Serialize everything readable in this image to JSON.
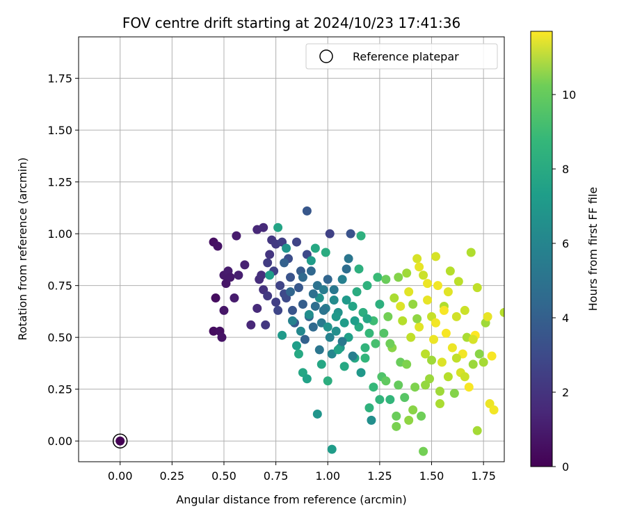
{
  "chart_data": {
    "type": "scatter",
    "title": "FOV centre drift starting at 2024/10/23 17:41:36",
    "xlabel": "Angular distance from reference (arcmin)",
    "ylabel": "Rotation from reference (arcmin)",
    "xlim": [
      -0.2,
      1.85
    ],
    "ylim": [
      -0.1,
      1.95
    ],
    "xticks": [
      0.0,
      0.25,
      0.5,
      0.75,
      1.0,
      1.25,
      1.5,
      1.75
    ],
    "xtick_labels": [
      "0.00",
      "0.25",
      "0.50",
      "0.75",
      "1.00",
      "1.25",
      "1.50",
      "1.75"
    ],
    "yticks": [
      0.0,
      0.25,
      0.5,
      0.75,
      1.0,
      1.25,
      1.5,
      1.75
    ],
    "ytick_labels": [
      "0.00",
      "0.25",
      "0.50",
      "0.75",
      "1.00",
      "1.25",
      "1.50",
      "1.75"
    ],
    "grid": true,
    "legend": {
      "position": "top-right",
      "entries": [
        "Reference platepar"
      ]
    },
    "reference_point": {
      "x": 0.0,
      "y": 0.0,
      "label": "Reference platepar"
    },
    "colorbar": {
      "label": "Hours from first FF file",
      "range": [
        0,
        11.7
      ],
      "ticks": [
        0,
        2,
        4,
        6,
        8,
        10
      ],
      "colormap": "viridis"
    },
    "points": [
      {
        "x": 0.45,
        "y": 0.96,
        "c": 0.5
      },
      {
        "x": 0.47,
        "y": 0.94,
        "c": 0.6
      },
      {
        "x": 0.46,
        "y": 0.69,
        "c": 0.4
      },
      {
        "x": 0.45,
        "y": 0.53,
        "c": 0.4
      },
      {
        "x": 0.48,
        "y": 0.53,
        "c": 0.5
      },
      {
        "x": 0.49,
        "y": 0.5,
        "c": 0.6
      },
      {
        "x": 0.5,
        "y": 0.63,
        "c": 0.7
      },
      {
        "x": 0.5,
        "y": 0.8,
        "c": 0.8
      },
      {
        "x": 0.51,
        "y": 0.76,
        "c": 0.7
      },
      {
        "x": 0.52,
        "y": 0.82,
        "c": 0.9
      },
      {
        "x": 0.53,
        "y": 0.79,
        "c": 0.8
      },
      {
        "x": 0.55,
        "y": 0.69,
        "c": 0.9
      },
      {
        "x": 0.56,
        "y": 0.99,
        "c": 0.9
      },
      {
        "x": 0.57,
        "y": 0.8,
        "c": 1.0
      },
      {
        "x": 0.6,
        "y": 0.85,
        "c": 1.1
      },
      {
        "x": 0.63,
        "y": 0.56,
        "c": 1.3
      },
      {
        "x": 0.66,
        "y": 0.64,
        "c": 1.4
      },
      {
        "x": 0.66,
        "y": 1.02,
        "c": 1.3
      },
      {
        "x": 0.67,
        "y": 0.78,
        "c": 1.5
      },
      {
        "x": 0.68,
        "y": 0.8,
        "c": 1.6
      },
      {
        "x": 0.69,
        "y": 1.03,
        "c": 1.4
      },
      {
        "x": 0.69,
        "y": 0.73,
        "c": 1.7
      },
      {
        "x": 0.7,
        "y": 0.56,
        "c": 1.9
      },
      {
        "x": 0.71,
        "y": 0.7,
        "c": 2.0
      },
      {
        "x": 0.71,
        "y": 0.86,
        "c": 2.1
      },
      {
        "x": 0.72,
        "y": 0.9,
        "c": 1.8
      },
      {
        "x": 0.73,
        "y": 0.97,
        "c": 1.9
      },
      {
        "x": 0.74,
        "y": 0.82,
        "c": 2.3
      },
      {
        "x": 0.75,
        "y": 0.67,
        "c": 2.2
      },
      {
        "x": 0.75,
        "y": 0.95,
        "c": 2.0
      },
      {
        "x": 0.76,
        "y": 0.63,
        "c": 2.5
      },
      {
        "x": 0.77,
        "y": 0.75,
        "c": 2.4
      },
      {
        "x": 0.78,
        "y": 0.96,
        "c": 2.2
      },
      {
        "x": 0.79,
        "y": 0.71,
        "c": 2.6
      },
      {
        "x": 0.8,
        "y": 0.69,
        "c": 2.7
      },
      {
        "x": 0.81,
        "y": 0.88,
        "c": 2.8
      },
      {
        "x": 0.82,
        "y": 0.79,
        "c": 3.0
      },
      {
        "x": 0.83,
        "y": 0.63,
        "c": 3.1
      },
      {
        "x": 0.84,
        "y": 0.57,
        "c": 3.3
      },
      {
        "x": 0.85,
        "y": 0.96,
        "c": 2.4
      },
      {
        "x": 0.86,
        "y": 0.74,
        "c": 3.2
      },
      {
        "x": 0.87,
        "y": 0.82,
        "c": 3.4
      },
      {
        "x": 0.88,
        "y": 0.66,
        "c": 3.5
      },
      {
        "x": 0.89,
        "y": 0.49,
        "c": 3.6
      },
      {
        "x": 0.9,
        "y": 0.9,
        "c": 2.6
      },
      {
        "x": 0.9,
        "y": 1.11,
        "c": 3.2
      },
      {
        "x": 0.91,
        "y": 0.6,
        "c": 3.8
      },
      {
        "x": 0.92,
        "y": 0.82,
        "c": 3.9
      },
      {
        "x": 0.93,
        "y": 0.55,
        "c": 4.0
      },
      {
        "x": 0.94,
        "y": 0.65,
        "c": 4.2
      },
      {
        "x": 0.95,
        "y": 0.75,
        "c": 4.4
      },
      {
        "x": 0.96,
        "y": 0.44,
        "c": 4.6
      },
      {
        "x": 0.97,
        "y": 0.57,
        "c": 4.8
      },
      {
        "x": 0.98,
        "y": 0.73,
        "c": 4.9
      },
      {
        "x": 0.99,
        "y": 0.64,
        "c": 5.0
      },
      {
        "x": 1.0,
        "y": 0.78,
        "c": 3.8
      },
      {
        "x": 1.01,
        "y": 1.0,
        "c": 2.3
      },
      {
        "x": 1.01,
        "y": 0.5,
        "c": 5.2
      },
      {
        "x": 1.02,
        "y": 0.42,
        "c": 5.4
      },
      {
        "x": 1.03,
        "y": 0.68,
        "c": 5.6
      },
      {
        "x": 1.04,
        "y": 0.53,
        "c": 5.8
      },
      {
        "x": 1.05,
        "y": 0.62,
        "c": 6.0
      },
      {
        "x": 1.06,
        "y": 0.45,
        "c": 6.2
      },
      {
        "x": 1.07,
        "y": 0.78,
        "c": 5.1
      },
      {
        "x": 1.08,
        "y": 0.57,
        "c": 6.4
      },
      {
        "x": 1.09,
        "y": 0.83,
        "c": 4.2
      },
      {
        "x": 1.1,
        "y": 0.88,
        "c": 4.6
      },
      {
        "x": 1.1,
        "y": 0.5,
        "c": 6.6
      },
      {
        "x": 1.11,
        "y": 1.0,
        "c": 3.0
      },
      {
        "x": 1.12,
        "y": 0.65,
        "c": 6.8
      },
      {
        "x": 1.13,
        "y": 0.4,
        "c": 7.0
      },
      {
        "x": 1.14,
        "y": 0.72,
        "c": 7.2
      },
      {
        "x": 1.15,
        "y": 0.55,
        "c": 7.1
      },
      {
        "x": 1.16,
        "y": 0.99,
        "c": 7.4
      },
      {
        "x": 1.16,
        "y": 0.33,
        "c": 6.2
      },
      {
        "x": 1.17,
        "y": 0.62,
        "c": 7.3
      },
      {
        "x": 1.18,
        "y": 0.45,
        "c": 7.6
      },
      {
        "x": 1.19,
        "y": 0.75,
        "c": 7.5
      },
      {
        "x": 1.2,
        "y": 0.52,
        "c": 7.8
      },
      {
        "x": 1.21,
        "y": 0.1,
        "c": 5.8
      },
      {
        "x": 1.22,
        "y": 0.58,
        "c": 8.0
      },
      {
        "x": 1.23,
        "y": 0.47,
        "c": 8.2
      },
      {
        "x": 1.24,
        "y": 0.79,
        "c": 7.9
      },
      {
        "x": 1.25,
        "y": 0.66,
        "c": 7.4
      },
      {
        "x": 1.25,
        "y": 0.2,
        "c": 7.6
      },
      {
        "x": 1.26,
        "y": 0.31,
        "c": 8.4
      },
      {
        "x": 1.27,
        "y": 0.52,
        "c": 8.5
      },
      {
        "x": 1.28,
        "y": 0.78,
        "c": 9.0
      },
      {
        "x": 1.29,
        "y": 0.6,
        "c": 9.2
      },
      {
        "x": 1.3,
        "y": 0.2,
        "c": 7.7
      },
      {
        "x": 1.31,
        "y": 0.45,
        "c": 9.6
      },
      {
        "x": 1.32,
        "y": 0.69,
        "c": 10.2
      },
      {
        "x": 1.33,
        "y": 0.12,
        "c": 9.0
      },
      {
        "x": 1.33,
        "y": 0.07,
        "c": 9.3
      },
      {
        "x": 1.34,
        "y": 0.79,
        "c": 9.5
      },
      {
        "x": 1.35,
        "y": 0.38,
        "c": 9.0
      },
      {
        "x": 1.36,
        "y": 0.58,
        "c": 10.4
      },
      {
        "x": 1.37,
        "y": 0.21,
        "c": 8.6
      },
      {
        "x": 1.38,
        "y": 0.81,
        "c": 10.0
      },
      {
        "x": 1.39,
        "y": 0.1,
        "c": 9.7
      },
      {
        "x": 1.4,
        "y": 0.5,
        "c": 10.6
      },
      {
        "x": 1.41,
        "y": 0.66,
        "c": 9.8
      },
      {
        "x": 1.42,
        "y": 0.26,
        "c": 9.4
      },
      {
        "x": 1.43,
        "y": 0.88,
        "c": 11.0
      },
      {
        "x": 1.44,
        "y": 0.55,
        "c": 11.2
      },
      {
        "x": 1.45,
        "y": 0.12,
        "c": 9.1
      },
      {
        "x": 1.46,
        "y": -0.05,
        "c": 9.2
      },
      {
        "x": 1.46,
        "y": 0.8,
        "c": 10.8
      },
      {
        "x": 1.47,
        "y": 0.42,
        "c": 10.5
      },
      {
        "x": 1.48,
        "y": 0.68,
        "c": 11.3
      },
      {
        "x": 1.49,
        "y": 0.3,
        "c": 9.9
      },
      {
        "x": 1.5,
        "y": 0.6,
        "c": 10.7
      },
      {
        "x": 1.51,
        "y": 0.49,
        "c": 11.4
      },
      {
        "x": 1.52,
        "y": 0.89,
        "c": 11.0
      },
      {
        "x": 1.53,
        "y": 0.75,
        "c": 11.5
      },
      {
        "x": 1.54,
        "y": 0.24,
        "c": 10.0
      },
      {
        "x": 1.55,
        "y": 0.38,
        "c": 11.1
      },
      {
        "x": 1.56,
        "y": 0.65,
        "c": 10.3
      },
      {
        "x": 1.57,
        "y": 0.52,
        "c": 11.6
      },
      {
        "x": 1.58,
        "y": 0.72,
        "c": 11.2
      },
      {
        "x": 1.59,
        "y": 0.82,
        "c": 10.4
      },
      {
        "x": 1.6,
        "y": 0.45,
        "c": 11.4
      },
      {
        "x": 1.61,
        "y": 0.23,
        "c": 9.5
      },
      {
        "x": 1.62,
        "y": 0.6,
        "c": 10.9
      },
      {
        "x": 1.63,
        "y": 0.77,
        "c": 10.5
      },
      {
        "x": 1.64,
        "y": 0.33,
        "c": 11.0
      },
      {
        "x": 1.65,
        "y": 0.42,
        "c": 11.5
      },
      {
        "x": 1.66,
        "y": 0.63,
        "c": 10.8
      },
      {
        "x": 1.67,
        "y": 0.5,
        "c": 10.2
      },
      {
        "x": 1.68,
        "y": 0.26,
        "c": 11.6
      },
      {
        "x": 1.69,
        "y": 0.91,
        "c": 10.3
      },
      {
        "x": 1.7,
        "y": 0.37,
        "c": 9.9
      },
      {
        "x": 1.71,
        "y": 0.51,
        "c": 11.7
      },
      {
        "x": 1.72,
        "y": 0.05,
        "c": 10.1
      },
      {
        "x": 1.72,
        "y": 0.74,
        "c": 10.6
      },
      {
        "x": 1.73,
        "y": 0.42,
        "c": 9.6
      },
      {
        "x": 1.75,
        "y": 0.38,
        "c": 10.1
      },
      {
        "x": 1.76,
        "y": 0.57,
        "c": 10.0
      },
      {
        "x": 1.77,
        "y": 0.6,
        "c": 11.3
      },
      {
        "x": 1.78,
        "y": 0.18,
        "c": 11.4
      },
      {
        "x": 1.79,
        "y": 0.41,
        "c": 11.6
      },
      {
        "x": 1.8,
        "y": 0.15,
        "c": 11.5
      },
      {
        "x": 1.85,
        "y": 0.62,
        "c": 10.4
      },
      {
        "x": 0.76,
        "y": 1.03,
        "c": 6.8
      },
      {
        "x": 0.72,
        "y": 0.8,
        "c": 6.5
      },
      {
        "x": 0.78,
        "y": 0.51,
        "c": 6.3
      },
      {
        "x": 0.8,
        "y": 0.93,
        "c": 6.1
      },
      {
        "x": 0.85,
        "y": 0.46,
        "c": 6.5
      },
      {
        "x": 0.86,
        "y": 0.42,
        "c": 7.0
      },
      {
        "x": 0.88,
        "y": 0.33,
        "c": 6.9
      },
      {
        "x": 0.9,
        "y": 0.3,
        "c": 6.7
      },
      {
        "x": 0.92,
        "y": 0.87,
        "c": 6.4
      },
      {
        "x": 0.94,
        "y": 0.93,
        "c": 7.0
      },
      {
        "x": 0.95,
        "y": 0.13,
        "c": 6.1
      },
      {
        "x": 0.97,
        "y": 0.37,
        "c": 6.9
      },
      {
        "x": 0.99,
        "y": 0.91,
        "c": 7.2
      },
      {
        "x": 1.0,
        "y": 0.29,
        "c": 7.3
      },
      {
        "x": 1.02,
        "y": -0.04,
        "c": 6.4
      },
      {
        "x": 1.05,
        "y": 0.44,
        "c": 6.7
      },
      {
        "x": 1.08,
        "y": 0.36,
        "c": 7.0
      },
      {
        "x": 1.15,
        "y": 0.83,
        "c": 7.4
      },
      {
        "x": 1.18,
        "y": 0.4,
        "c": 7.7
      },
      {
        "x": 1.2,
        "y": 0.16,
        "c": 7.5
      },
      {
        "x": 1.22,
        "y": 0.26,
        "c": 7.8
      },
      {
        "x": 0.83,
        "y": 0.58,
        "c": 5.2
      },
      {
        "x": 0.87,
        "y": 0.53,
        "c": 5.5
      },
      {
        "x": 0.91,
        "y": 0.61,
        "c": 5.7
      },
      {
        "x": 0.96,
        "y": 0.69,
        "c": 5.9
      },
      {
        "x": 1.0,
        "y": 0.55,
        "c": 6.0
      },
      {
        "x": 1.04,
        "y": 0.6,
        "c": 6.2
      },
      {
        "x": 1.09,
        "y": 0.68,
        "c": 6.3
      },
      {
        "x": 1.13,
        "y": 0.58,
        "c": 6.5
      },
      {
        "x": 1.19,
        "y": 0.59,
        "c": 6.9
      },
      {
        "x": 0.79,
        "y": 0.86,
        "c": 3.6
      },
      {
        "x": 0.82,
        "y": 0.72,
        "c": 3.8
      },
      {
        "x": 0.88,
        "y": 0.79,
        "c": 4.0
      },
      {
        "x": 0.93,
        "y": 0.71,
        "c": 4.3
      },
      {
        "x": 0.98,
        "y": 0.63,
        "c": 4.5
      },
      {
        "x": 1.03,
        "y": 0.73,
        "c": 4.7
      },
      {
        "x": 1.07,
        "y": 0.48,
        "c": 4.8
      },
      {
        "x": 1.12,
        "y": 0.41,
        "c": 5.0
      },
      {
        "x": 1.28,
        "y": 0.29,
        "c": 8.8
      },
      {
        "x": 1.3,
        "y": 0.47,
        "c": 9.1
      },
      {
        "x": 1.34,
        "y": 0.27,
        "c": 8.9
      },
      {
        "x": 1.38,
        "y": 0.37,
        "c": 9.4
      },
      {
        "x": 1.41,
        "y": 0.15,
        "c": 9.6
      },
      {
        "x": 1.43,
        "y": 0.59,
        "c": 9.7
      },
      {
        "x": 1.47,
        "y": 0.27,
        "c": 9.8
      },
      {
        "x": 1.5,
        "y": 0.39,
        "c": 10.0
      },
      {
        "x": 1.54,
        "y": 0.18,
        "c": 10.2
      },
      {
        "x": 1.58,
        "y": 0.31,
        "c": 10.4
      },
      {
        "x": 1.62,
        "y": 0.4,
        "c": 10.6
      },
      {
        "x": 1.66,
        "y": 0.31,
        "c": 10.8
      },
      {
        "x": 1.7,
        "y": 0.49,
        "c": 11.0
      },
      {
        "x": 1.35,
        "y": 0.65,
        "c": 11.1
      },
      {
        "x": 1.39,
        "y": 0.72,
        "c": 11.2
      },
      {
        "x": 1.44,
        "y": 0.84,
        "c": 11.3
      },
      {
        "x": 1.48,
        "y": 0.76,
        "c": 11.4
      },
      {
        "x": 1.52,
        "y": 0.57,
        "c": 11.5
      },
      {
        "x": 1.56,
        "y": 0.63,
        "c": 11.6
      }
    ]
  }
}
